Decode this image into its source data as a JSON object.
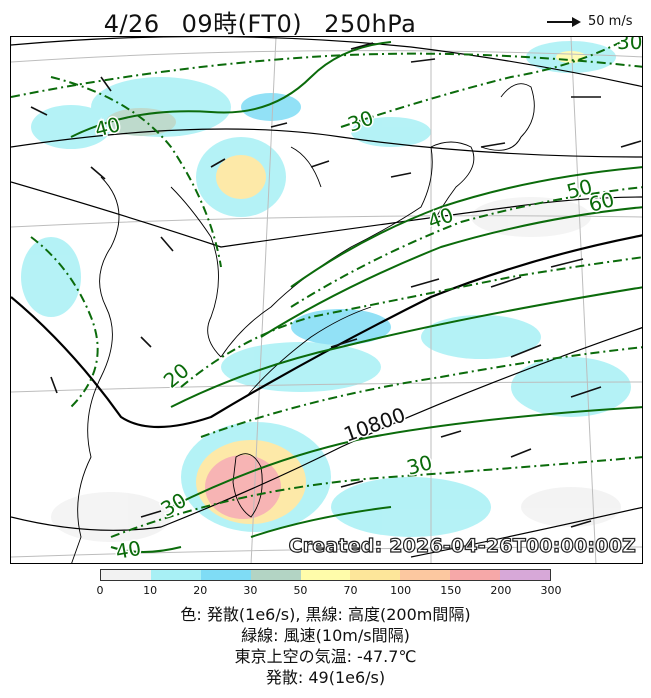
{
  "header": {
    "date": "4/26",
    "time": "09時(FT0)",
    "level": "250hPa",
    "reference_vector": "50 m/s"
  },
  "map": {
    "created_stamp": "Created: 2026-04-26T00:00:00Z",
    "height_contour_label": "10800",
    "wind_speed_labels": [
      "40",
      "30",
      "50",
      "60",
      "40",
      "20",
      "30",
      "30",
      "40",
      "30"
    ]
  },
  "colorbar": {
    "ticks": [
      "0",
      "10",
      "20",
      "30",
      "50",
      "70",
      "100",
      "150",
      "200",
      "300"
    ],
    "colors": [
      "#f2f2f2",
      "#a8f0f5",
      "#7fdcf5",
      "#b3d4c4",
      "#fffcaa",
      "#fde69a",
      "#fcc8a0",
      "#f6a8a8",
      "#d7a8d8"
    ]
  },
  "caption": {
    "line1": "色: 発散(1e6/s), 黒線: 高度(200m間隔)",
    "line2": "緑線: 風速(10m/s間隔)",
    "line3": "東京上空の気温: -47.7℃",
    "line4": "発散: 49(1e6/s)"
  },
  "colors": {
    "wind_contour": "#0b6b0b",
    "height_contour": "#000000",
    "coast": "#000000",
    "grid": "#bdbdbd"
  }
}
